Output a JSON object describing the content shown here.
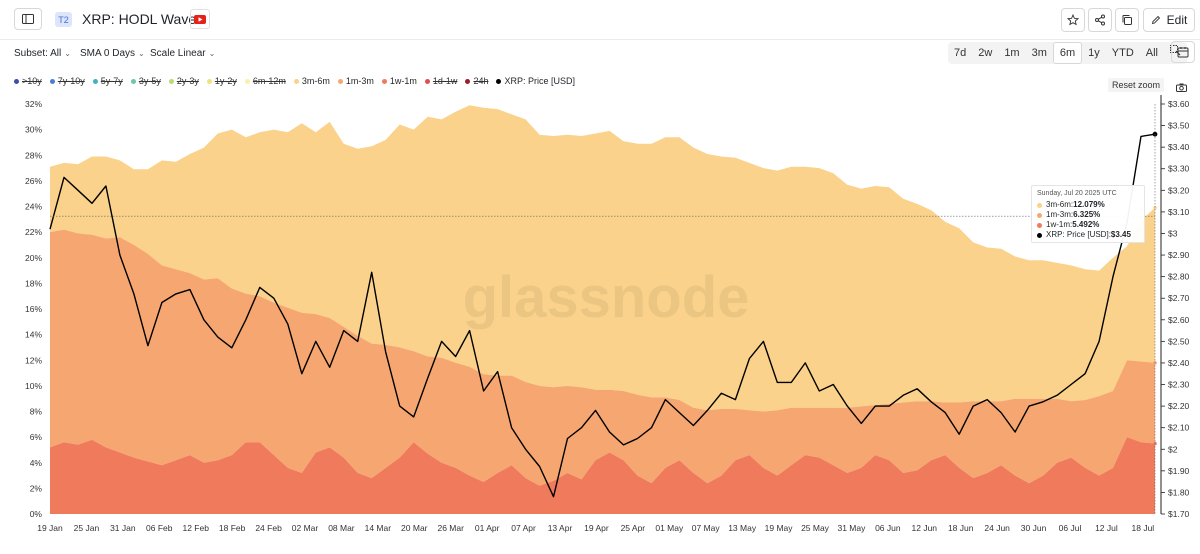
{
  "header": {
    "tier_badge": "T2",
    "title": "XRP: HODL Waves",
    "edit_label": "Edit"
  },
  "toolbar": {
    "subset": "Subset: All",
    "sma": "SMA 0 Days",
    "scale": "Scale Linear",
    "ranges": [
      "7d",
      "2w",
      "1m",
      "3m",
      "6m",
      "1y",
      "YTD",
      "All"
    ],
    "active_range": "6m",
    "reset_zoom": "Reset zoom"
  },
  "legend": [
    {
      "label": ">10y",
      "color": "#3d4fa8",
      "active": false
    },
    {
      "label": "7y-10y",
      "color": "#4a7fd0",
      "active": false
    },
    {
      "label": "5y-7y",
      "color": "#3fb3c4",
      "active": false
    },
    {
      "label": "3y-5y",
      "color": "#6cc8a2",
      "active": false
    },
    {
      "label": "2y-3y",
      "color": "#b5dd72",
      "active": false
    },
    {
      "label": "1y-2y",
      "color": "#efe27a",
      "active": false
    },
    {
      "label": "6m-12m",
      "color": "#fcefa7",
      "active": false
    },
    {
      "label": "3m-6m",
      "color": "#fad28b",
      "active": true
    },
    {
      "label": "1m-3m",
      "color": "#f6a771",
      "active": true
    },
    {
      "label": "1w-1m",
      "color": "#ef7a5c",
      "active": true
    },
    {
      "label": "1d-1w",
      "color": "#e04e4e",
      "active": false
    },
    {
      "label": "24h",
      "color": "#9c1c2c",
      "active": false
    },
    {
      "label": "XRP: Price [USD]",
      "color": "#000000",
      "active": true
    }
  ],
  "watermark": "glassnode",
  "tooltip": {
    "date": "Sunday, Jul 20 2025 UTC",
    "rows": [
      {
        "label": "3m-6m",
        "value": "12.079%",
        "color": "#fad28b"
      },
      {
        "label": "1m-3m",
        "value": "6.325%",
        "color": "#f6a771"
      },
      {
        "label": "1w-1m",
        "value": "5.492%",
        "color": "#ef7a5c"
      },
      {
        "label": "XRP: Price [USD]",
        "value": "$3.45",
        "color": "#000000"
      }
    ]
  },
  "chart_data": {
    "type": "area",
    "stacked": true,
    "x_start": "2025-01-19",
    "x_end": "2025-07-20",
    "x_tick_labels": [
      "19 Jan",
      "25 Jan",
      "31 Jan",
      "06 Feb",
      "12 Feb",
      "18 Feb",
      "24 Feb",
      "02 Mar",
      "08 Mar",
      "14 Mar",
      "20 Mar",
      "26 Mar",
      "01 Apr",
      "07 Apr",
      "13 Apr",
      "19 Apr",
      "25 Apr",
      "01 May",
      "07 May",
      "13 May",
      "19 May",
      "25 May",
      "31 May",
      "06 Jun",
      "12 Jun",
      "18 Jun",
      "24 Jun",
      "30 Jun",
      "06 Jul",
      "12 Jul",
      "18 Jul"
    ],
    "y_left_range": [
      0,
      32
    ],
    "y_left_ticks": [
      "0%",
      "2%",
      "4%",
      "6%",
      "8%",
      "10%",
      "12%",
      "14%",
      "16%",
      "18%",
      "20%",
      "22%",
      "24%",
      "26%",
      "28%",
      "30%",
      "32%"
    ],
    "y_right_range": [
      1.7,
      3.6
    ],
    "y_right_ticks": [
      "$1.70",
      "$1.80",
      "$1.90",
      "$2",
      "$2.10",
      "$2.20",
      "$2.30",
      "$2.40",
      "$2.50",
      "$2.60",
      "$2.70",
      "$2.80",
      "$2.90",
      "$3",
      "$3.10",
      "$3.20",
      "$3.30",
      "$3.40",
      "$3.50",
      "$3.60"
    ],
    "grid": false,
    "legend_position": "top-left",
    "series": [
      {
        "name": "1w-1m",
        "color": "#ef7a5c",
        "values": [
          5.2,
          5.6,
          5.4,
          5.8,
          5.2,
          4.8,
          4.4,
          4.1,
          3.8,
          4.2,
          4.6,
          4.0,
          4.2,
          4.6,
          5.6,
          5.6,
          4.6,
          3.6,
          3.2,
          4.8,
          5.2,
          4.4,
          3.2,
          2.8,
          3.6,
          4.4,
          5.6,
          4.7,
          4.0,
          3.6,
          3.0,
          2.5,
          3.2,
          3.8,
          2.8,
          2.2,
          2.6,
          3.2,
          2.7,
          4.2,
          4.8,
          4.2,
          3.0,
          2.4,
          3.6,
          4.2,
          3.2,
          2.4,
          3.0,
          4.2,
          4.6,
          3.6,
          3.0,
          3.8,
          4.6,
          4.4,
          3.8,
          3.2,
          3.6,
          4.6,
          4.2,
          3.2,
          3.4,
          4.2,
          4.6,
          3.6,
          2.8,
          3.2,
          3.8,
          3.0,
          2.4,
          3.0,
          4.0,
          4.4,
          3.6,
          3.0,
          3.6,
          6.0,
          5.6,
          5.5
        ]
      },
      {
        "name": "1m-3m",
        "color": "#f6a771",
        "values": [
          16.8,
          16.6,
          16.5,
          16.0,
          16.3,
          16.8,
          16.6,
          16.2,
          15.6,
          14.9,
          14.2,
          14.3,
          14.2,
          13.0,
          11.6,
          11.4,
          11.9,
          12.5,
          12.5,
          10.8,
          10.1,
          10.2,
          10.7,
          10.5,
          9.6,
          8.6,
          7.1,
          7.6,
          8.2,
          8.2,
          8.5,
          8.4,
          7.6,
          7.0,
          7.5,
          7.8,
          7.3,
          6.8,
          7.2,
          5.5,
          4.9,
          5.4,
          6.3,
          6.7,
          5.5,
          4.7,
          5.1,
          5.7,
          5.2,
          4.0,
          3.5,
          4.4,
          5.1,
          4.5,
          3.7,
          3.9,
          4.5,
          5.1,
          4.8,
          3.9,
          4.4,
          5.5,
          5.4,
          4.6,
          4.1,
          5.1,
          6.0,
          5.6,
          5.0,
          6.0,
          6.6,
          6.0,
          5.0,
          4.4,
          5.3,
          6.2,
          6.0,
          6.0,
          6.3,
          6.3
        ]
      },
      {
        "name": "3m-6m",
        "color": "#fad28b",
        "values": [
          5.1,
          5.2,
          5.4,
          6.1,
          6.4,
          6.0,
          5.9,
          6.6,
          8.2,
          8.4,
          9.3,
          10.3,
          11.3,
          12.4,
          12.2,
          12.8,
          13.5,
          13.7,
          14.8,
          14.2,
          15.3,
          14.3,
          14.6,
          15.4,
          16.0,
          17.4,
          17.3,
          18.7,
          18.6,
          19.6,
          20.4,
          20.8,
          20.8,
          20.4,
          20.5,
          19.6,
          19.6,
          19.6,
          19.6,
          20.0,
          20.2,
          19.5,
          19.6,
          19.8,
          20.3,
          20.5,
          20.3,
          20.0,
          19.7,
          19.6,
          19.3,
          19.0,
          18.7,
          18.8,
          18.8,
          18.7,
          18.3,
          17.4,
          17.0,
          17.1,
          16.9,
          15.9,
          15.4,
          14.9,
          14.1,
          13.6,
          12.4,
          12.0,
          11.9,
          11.1,
          10.8,
          10.8,
          10.6,
          10.6,
          10.2,
          9.8,
          10.4,
          8.9,
          11.0,
          12.1
        ]
      },
      {
        "name": "XRP: Price [USD]",
        "color": "#000000",
        "axis": "right",
        "values": [
          3.02,
          3.26,
          3.2,
          3.14,
          3.22,
          2.9,
          2.72,
          2.48,
          2.68,
          2.72,
          2.74,
          2.6,
          2.52,
          2.47,
          2.6,
          2.75,
          2.7,
          2.58,
          2.35,
          2.5,
          2.38,
          2.55,
          2.5,
          2.82,
          2.45,
          2.2,
          2.15,
          2.33,
          2.5,
          2.43,
          2.55,
          2.27,
          2.36,
          2.1,
          2.0,
          1.92,
          1.78,
          2.05,
          2.1,
          2.18,
          2.08,
          2.02,
          2.05,
          2.1,
          2.23,
          2.17,
          2.11,
          2.18,
          2.26,
          2.23,
          2.42,
          2.5,
          2.31,
          2.31,
          2.4,
          2.27,
          2.3,
          2.2,
          2.12,
          2.2,
          2.2,
          2.25,
          2.28,
          2.22,
          2.17,
          2.07,
          2.2,
          2.23,
          2.17,
          2.08,
          2.2,
          2.22,
          2.25,
          2.3,
          2.35,
          2.5,
          2.8,
          3.05,
          3.45,
          3.46
        ]
      }
    ],
    "crosshair_y": 3.08
  }
}
